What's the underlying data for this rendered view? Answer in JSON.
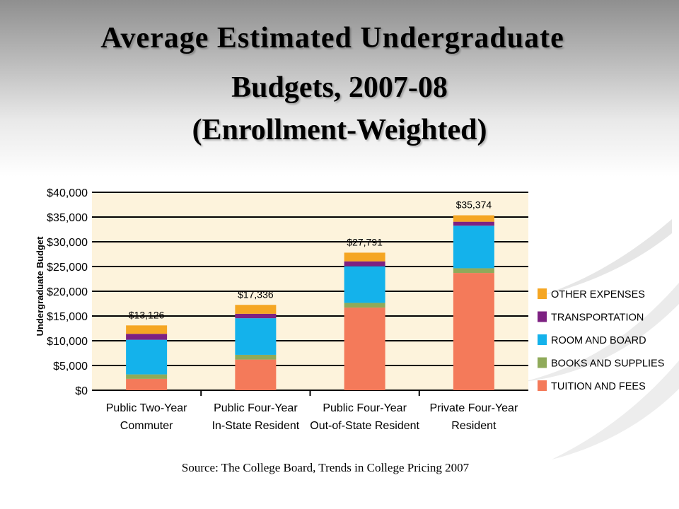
{
  "slide": {
    "title_line1": "Average Estimated Undergraduate",
    "title_line2": "Budgets,  2007-08",
    "title_line3": "(Enrollment-Weighted)",
    "source": "Source: The College Board, Trends in College Pricing 2007"
  },
  "chart_data": {
    "type": "bar",
    "stacked": true,
    "ylabel": "Undergraduate Budget",
    "ylim": [
      0,
      40000
    ],
    "yticks": [
      0,
      5000,
      10000,
      15000,
      20000,
      25000,
      30000,
      35000,
      40000
    ],
    "ytick_labels": [
      "$0",
      "$5,000",
      "$10,000",
      "$15,000",
      "$20,000",
      "$25,000",
      "$30,000",
      "$35,000",
      "$40,000"
    ],
    "grid": true,
    "legend_position": "right",
    "categories": [
      [
        "Public Two-Year",
        "Commuter"
      ],
      [
        "Public Four-Year",
        "In-State Resident"
      ],
      [
        "Public Four-Year",
        "Out-of-State Resident"
      ],
      [
        "Private Four-Year",
        "Resident"
      ]
    ],
    "totals": [
      "$13,126",
      "$17,336",
      "$27,791",
      "$35,374"
    ],
    "series": [
      {
        "name": "TUITION AND FEES",
        "color": "#f47a5a",
        "values": [
          2300,
          6200,
          16700,
          23700
        ]
      },
      {
        "name": "BOOKS AND SUPPLIES",
        "color": "#8faa5a",
        "values": [
          900,
          950,
          950,
          950
        ]
      },
      {
        "name": "ROOM AND BOARD",
        "color": "#14b2eb",
        "values": [
          7000,
          7400,
          7400,
          8600
        ]
      },
      {
        "name": "TRANSPORTATION",
        "color": "#7d2182",
        "values": [
          1200,
          900,
          1000,
          800
        ]
      },
      {
        "name": "OTHER EXPENSES",
        "color": "#f5a623",
        "values": [
          1700,
          1800,
          1750,
          1300
        ]
      }
    ]
  }
}
